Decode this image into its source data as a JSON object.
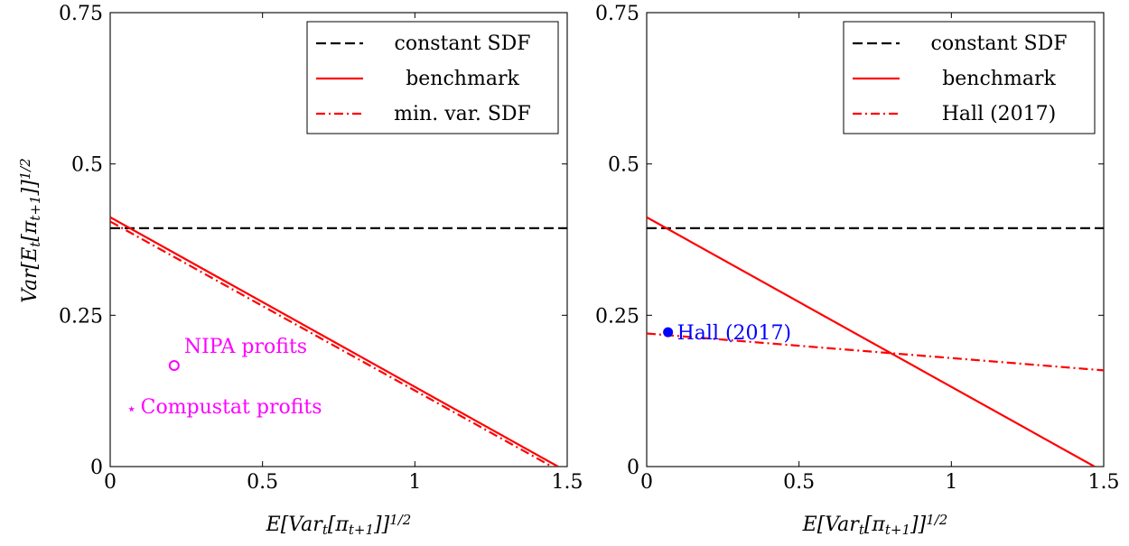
{
  "chart_data": [
    {
      "type": "line",
      "xlabel": "E[Var_t[π_{t+1}]]^{1/2}",
      "ylabel": "Var[E_t[π_{t+1}]]^{1/2}",
      "xlim": [
        0,
        1.5
      ],
      "ylim": [
        0,
        0.75
      ],
      "xticks": [
        "0",
        "0.5",
        "1",
        "1.5"
      ],
      "yticks": [
        "0",
        "0.25",
        "0.5",
        "0.75"
      ],
      "legend_position": "top-right",
      "series": [
        {
          "name": "constant SDF",
          "style": "dashed",
          "color": "#000000",
          "x": [
            0,
            1.5
          ],
          "y": [
            0.394,
            0.394
          ]
        },
        {
          "name": "benchmark",
          "style": "solid",
          "color": "#ff0000",
          "x": [
            0,
            1.47
          ],
          "y": [
            0.412,
            0
          ]
        },
        {
          "name": "min. var. SDF",
          "style": "dashdot",
          "color": "#ff0000",
          "x": [
            0,
            1.45
          ],
          "y": [
            0.405,
            0
          ]
        }
      ],
      "points": [
        {
          "label": "NIPA profits",
          "marker": "circle",
          "color": "#ff00ff",
          "x": 0.21,
          "y": 0.167
        },
        {
          "label": "Compustat profits",
          "marker": "star",
          "color": "#ff00ff",
          "x": 0.07,
          "y": 0.1
        }
      ]
    },
    {
      "type": "line",
      "xlabel": "E[Var_t[π_{t+1}]]^{1/2}",
      "ylabel": "",
      "xlim": [
        0,
        1.5
      ],
      "ylim": [
        0,
        0.75
      ],
      "xticks": [
        "0",
        "0.5",
        "1",
        "1.5"
      ],
      "yticks": [
        "0",
        "0.25",
        "0.5",
        "0.75"
      ],
      "legend_position": "top-right",
      "series": [
        {
          "name": "constant SDF",
          "style": "dashed",
          "color": "#000000",
          "x": [
            0,
            1.5
          ],
          "y": [
            0.394,
            0.394
          ]
        },
        {
          "name": "benchmark",
          "style": "solid",
          "color": "#ff0000",
          "x": [
            0,
            1.47
          ],
          "y": [
            0.412,
            0
          ]
        },
        {
          "name": "Hall (2017)",
          "style": "dashdot",
          "color": "#ff0000",
          "x": [
            0,
            1.5
          ],
          "y": [
            0.22,
            0.159
          ]
        }
      ],
      "points": [
        {
          "label": "Hall (2017)",
          "marker": "dot",
          "color": "#0000ff",
          "x": 0.07,
          "y": 0.222
        }
      ]
    }
  ]
}
